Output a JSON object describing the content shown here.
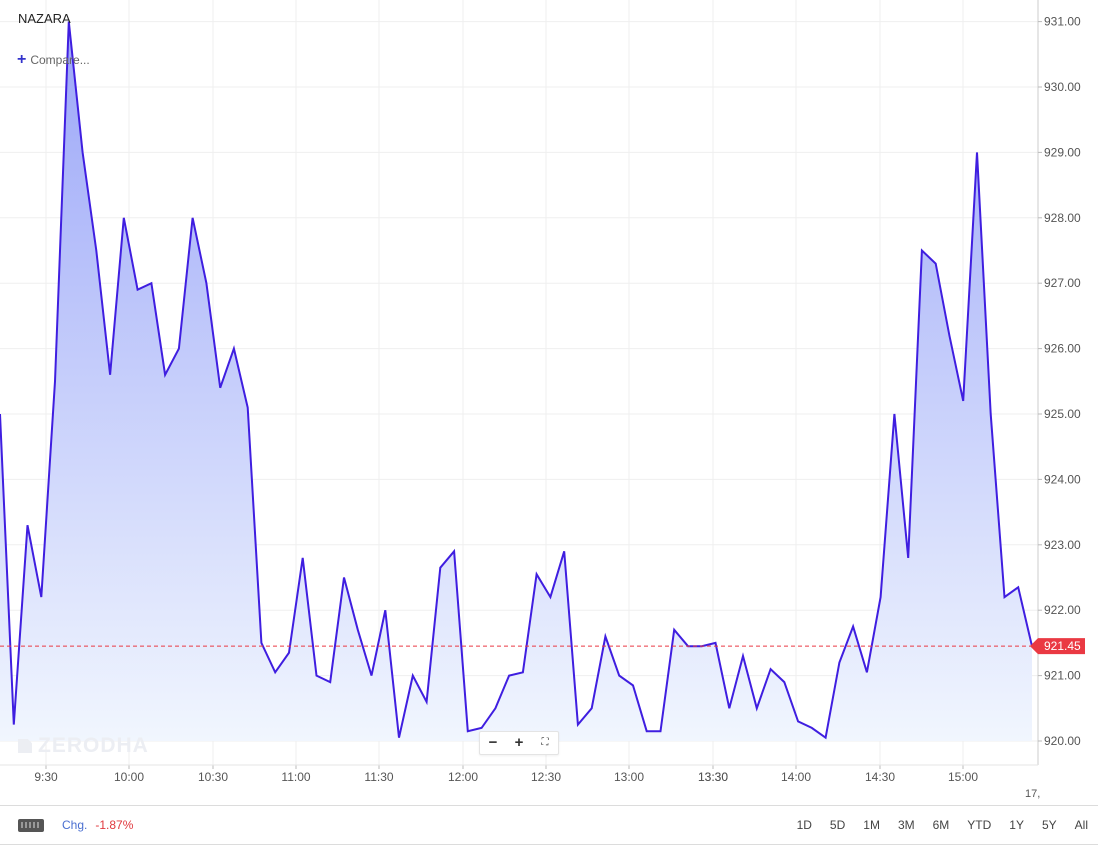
{
  "header": {
    "symbol": "NAZARA",
    "compare_label": "Compare..."
  },
  "watermark": "ZERODHA",
  "zoom": {
    "minus": "−",
    "plus": "+",
    "reset": "⛶"
  },
  "footer": {
    "change_label": "Chg.",
    "change_value": "-1.87%",
    "ranges": [
      "1D",
      "5D",
      "1M",
      "3M",
      "6M",
      "YTD",
      "1Y",
      "5Y",
      "All"
    ]
  },
  "colors": {
    "line": "#3f1ee0",
    "fill_top": "#9ba6f8",
    "fill_bottom": "#f1f6fe",
    "price_tag": "#ea3943",
    "grid": "#efefef"
  },
  "chart_data": {
    "type": "area",
    "x_unit": "time (HH:MM)",
    "yticks": [
      920,
      921,
      922,
      923,
      924,
      925,
      926,
      927,
      928,
      929,
      930,
      931
    ],
    "ytick_labels": [
      "920.00",
      "921.00",
      "922.00",
      "923.00",
      "924.00",
      "925.00",
      "926.00",
      "927.00",
      "928.00",
      "929.00",
      "930.00",
      "931.00"
    ],
    "ylim": [
      919.75,
      931.35
    ],
    "xticks": [
      "9:30",
      "10:00",
      "10:30",
      "11:00",
      "11:30",
      "12:00",
      "12:30",
      "13:00",
      "13:30",
      "13:30",
      "14:00",
      "14:30",
      "15:00"
    ],
    "xtick_partial": "17,",
    "last_price": 921.45,
    "last_price_label": "921.45",
    "values": [
      925.0,
      920.25,
      923.3,
      922.2,
      925.5,
      931.0,
      929.0,
      927.5,
      925.6,
      928.0,
      926.9,
      927.0,
      925.6,
      926.0,
      928.0,
      927.0,
      925.4,
      926.0,
      925.1,
      921.5,
      921.05,
      921.35,
      922.8,
      921.0,
      920.9,
      922.5,
      921.7,
      921.0,
      922.0,
      920.05,
      921.0,
      920.6,
      922.65,
      922.9,
      920.15,
      920.2,
      920.5,
      921.0,
      921.05,
      922.55,
      922.2,
      922.9,
      920.25,
      920.5,
      921.6,
      921.0,
      920.85,
      920.15,
      920.15,
      921.7,
      921.45,
      921.45,
      921.5,
      920.5,
      921.3,
      920.5,
      921.1,
      920.9,
      920.3,
      920.2,
      920.05,
      921.2,
      921.75,
      921.05,
      922.2,
      925.0,
      922.8,
      927.5,
      927.3,
      926.2,
      925.2,
      929.0,
      925.0,
      922.2,
      922.35,
      921.45
    ],
    "grid": true,
    "legend": "none"
  }
}
